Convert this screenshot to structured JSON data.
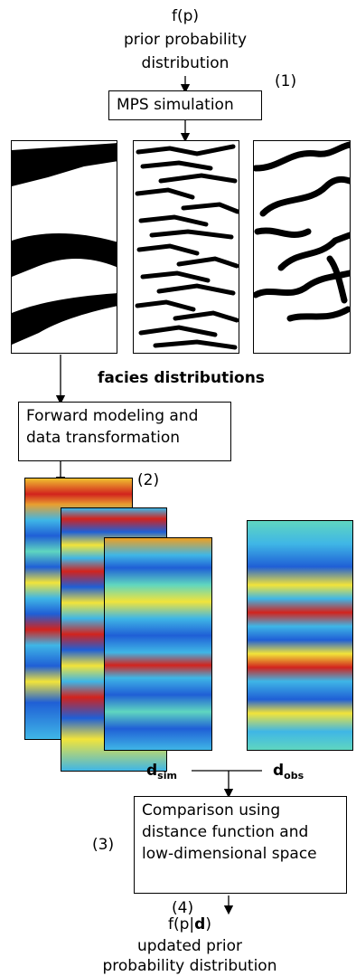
{
  "top": {
    "formula": "f(p)",
    "line1": "prior probability",
    "line2": "distribution"
  },
  "steps": {
    "step1": "(1)",
    "step2": "(2)",
    "step3": "(3)",
    "step4": "(4)"
  },
  "boxes": {
    "mps": "MPS simulation",
    "forward_line1": "Forward modeling and",
    "forward_line2": "data transformation",
    "compare_line1": "Comparison using",
    "compare_line2": "distance function and",
    "compare_line3": "low-dimensional space"
  },
  "facies_label": "facies distributions",
  "data_labels": {
    "dsim_main": "d",
    "dsim_sub": "sim",
    "dobs_main": "d",
    "dobs_sub": "obs"
  },
  "bottom": {
    "formula_pre": "f(p|",
    "formula_bold": "d",
    "formula_post": ")",
    "line1": "updated prior",
    "line2": "probability distribution"
  },
  "colors": {
    "jet_blue": "#1f5fd6",
    "jet_cyan": "#3fb6e6",
    "jet_yellow": "#f2e43a",
    "jet_red": "#d2231d",
    "facies": "#000000"
  }
}
